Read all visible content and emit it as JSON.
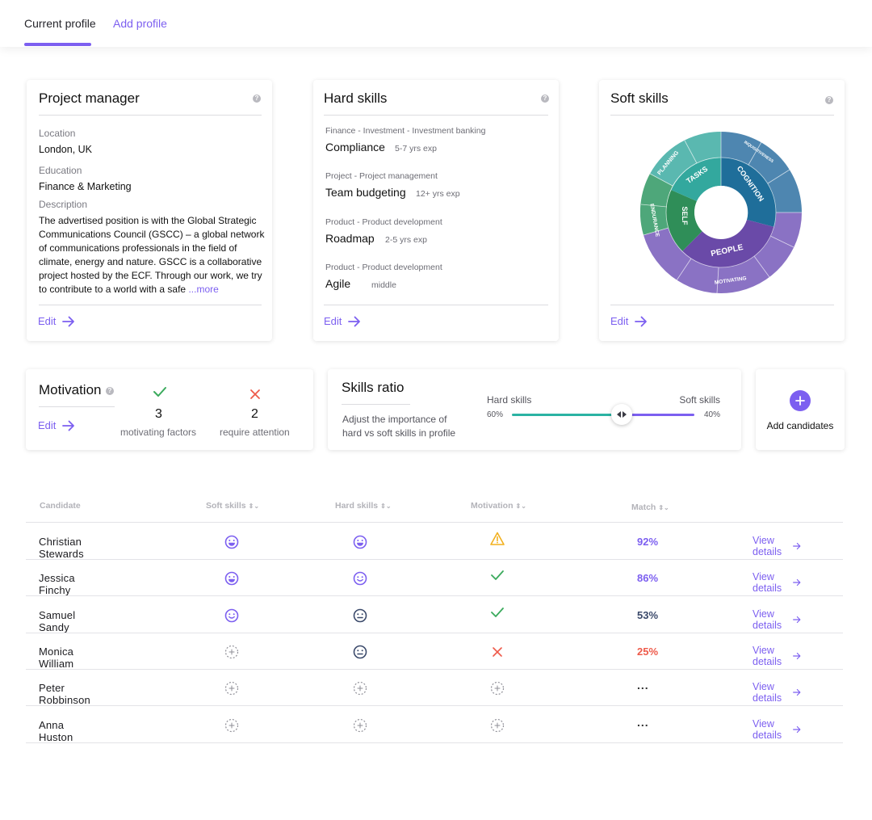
{
  "tabs": {
    "current": "Current profile",
    "add": "Add profile"
  },
  "colors": {
    "accent": "#7c5ff0",
    "teal": "#2bb3a3",
    "green": "#3aaa5c",
    "red": "#ee5a4a",
    "warning": "#f2b01e"
  },
  "profile": {
    "title": "Project manager",
    "location_label": "Location",
    "location": "London, UK",
    "education_label": "Education",
    "education": "Finance & Marketing",
    "description_label": "Description",
    "description": "The advertised position is with the Global Strategic Communications Council (GSCC) – a global network of communications professionals in the field of climate, energy and nature. GSCC is a collaborative project hosted by the ECF. Through our work, we try to contribute to a world with a safe",
    "more": "...more",
    "edit": "Edit"
  },
  "hard_skills": {
    "title": "Hard skills",
    "items": [
      {
        "category": "Finance - Investment - Investment banking",
        "name": "Compliance",
        "exp": "5-7 yrs exp"
      },
      {
        "category": "Project - Project management",
        "name": "Team budgeting",
        "exp": "12+ yrs exp"
      },
      {
        "category": "Product - Product development",
        "name": "Roadmap",
        "exp": "2-5 yrs exp"
      },
      {
        "category": "Product - Product development",
        "name": "Agile",
        "exp": "middle"
      }
    ],
    "edit": "Edit"
  },
  "soft_skills": {
    "title": "Soft skills",
    "edit": "Edit",
    "segments": {
      "tasks": "TASKS",
      "cognition": "COGNITION",
      "self": "SELF",
      "people": "PEOPLE",
      "planning": "PLANNING",
      "endurance": "ENDURANCE",
      "motivating": "MOTIVATING",
      "inquisitiveness": "INQUISITIVENESS"
    }
  },
  "motivation": {
    "title": "Motivation",
    "edit": "Edit",
    "motivating_count": "3",
    "motivating_label": "motivating factors",
    "attention_count": "2",
    "attention_label": "require attention"
  },
  "skills_ratio": {
    "title": "Skills ratio",
    "description": "Adjust the importance of hard vs soft skills in profile",
    "hard_label": "Hard skills",
    "soft_label": "Soft skills",
    "hard_pct": "60%",
    "soft_pct": "40%",
    "hard_fraction": 0.6
  },
  "add_candidates": {
    "label": "Add candidates"
  },
  "table": {
    "headers": {
      "candidate": "Candidate",
      "soft": "Soft skills",
      "hard": "Hard skills",
      "motivation": "Motivation",
      "match": "Match"
    },
    "view_label": "View details",
    "rows": [
      {
        "name": "Christian Stewards",
        "soft": "happy",
        "hard": "happy",
        "motivation": "warning",
        "match": "92%",
        "match_color": "#7c5ff0"
      },
      {
        "name": "Jessica Finchy",
        "soft": "happy",
        "hard": "smile",
        "motivation": "check",
        "match": "86%",
        "match_color": "#7c5ff0"
      },
      {
        "name": "Samuel Sandy",
        "soft": "smile",
        "hard": "neutral",
        "motivation": "check",
        "match": "53%",
        "match_color": "#3b4a6b"
      },
      {
        "name": "Monica William",
        "soft": "empty",
        "hard": "neutral",
        "motivation": "cross",
        "match": "25%",
        "match_color": "#ee5a4a"
      },
      {
        "name": "Peter Robbinson",
        "soft": "empty",
        "hard": "empty",
        "motivation": "empty",
        "match": "...",
        "match_color": "#333333"
      },
      {
        "name": "Anna Huston",
        "soft": "empty",
        "hard": "empty",
        "motivation": "empty",
        "match": "...",
        "match_color": "#333333"
      }
    ]
  }
}
